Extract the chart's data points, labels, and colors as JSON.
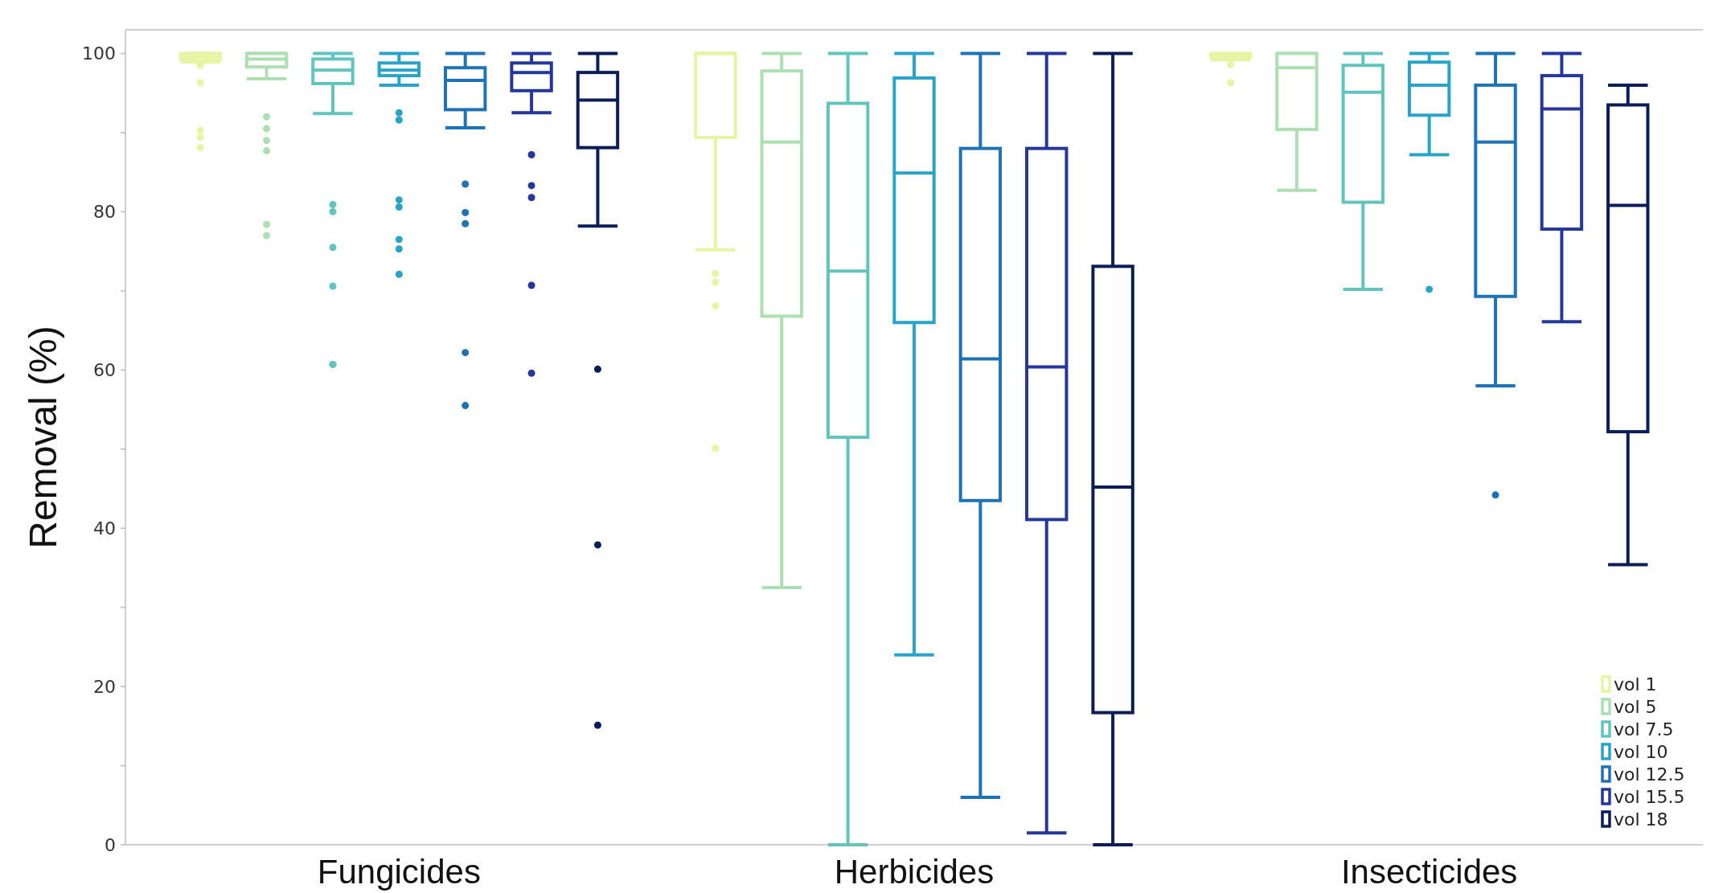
{
  "chart_data": {
    "type": "box",
    "ylabel": "Removal (%)",
    "categories": [
      "Fungicides",
      "Herbicides",
      "Insecticides"
    ],
    "ylim": [
      0,
      103
    ],
    "yticks": [
      0,
      {
        "value": 10,
        "label": null
      },
      20,
      {
        "value": 30,
        "label": null
      },
      40,
      {
        "value": 50,
        "label": null
      },
      60,
      {
        "value": 70,
        "label": null
      },
      80,
      {
        "value": 90,
        "label": null
      },
      100
    ],
    "legend": "bottom right",
    "series": [
      {
        "name": "vol 1",
        "color": "#e6f4a3",
        "boxes": [
          {
            "low": 98.9,
            "q1": 99.2,
            "median": 99.6,
            "q3": 100,
            "high": 100,
            "outliers": [
              98.5,
              96.3,
              90.3,
              89.4,
              88.1
            ]
          },
          {
            "low": 75.2,
            "q1": 89.4,
            "median": 100,
            "q3": 100,
            "high": 100,
            "outliers": [
              72.2,
              71.1,
              68.1,
              50.1
            ]
          },
          {
            "low": 99.2,
            "q1": 99.5,
            "median": 99.8,
            "q3": 100,
            "high": 100,
            "outliers": [
              98.6,
              96.3
            ]
          }
        ]
      },
      {
        "name": "vol 5",
        "color": "#ace0b2",
        "boxes": [
          {
            "low": 96.8,
            "q1": 98.3,
            "median": 99.3,
            "q3": 100,
            "high": 100,
            "outliers": [
              92.0,
              90.5,
              89.0,
              87.7,
              78.4,
              77.0
            ]
          },
          {
            "low": 32.5,
            "q1": 66.8,
            "median": 88.8,
            "q3": 97.8,
            "high": 100
          },
          {
            "low": 82.7,
            "q1": 90.4,
            "median": 98.2,
            "q3": 100,
            "high": 100
          }
        ]
      },
      {
        "name": "vol 7.5",
        "color": "#63c3bd",
        "boxes": [
          {
            "low": 92.4,
            "q1": 96.2,
            "median": 97.9,
            "q3": 99.3,
            "high": 100,
            "outliers": [
              80.9,
              80.0,
              75.5,
              70.6,
              60.7,
              60.7
            ]
          },
          {
            "low": 0,
            "q1": 51.5,
            "median": 72.5,
            "q3": 93.7,
            "high": 100
          },
          {
            "low": 70.2,
            "q1": 81.2,
            "median": 95.1,
            "q3": 98.5,
            "high": 100
          }
        ]
      },
      {
        "name": "vol 10",
        "color": "#2aa3c8",
        "boxes": [
          {
            "low": 96.0,
            "q1": 97.2,
            "median": 97.9,
            "q3": 98.8,
            "high": 100,
            "outliers": [
              92.5,
              91.6,
              81.5,
              80.6,
              76.5,
              75.3,
              72.1
            ]
          },
          {
            "low": 24.0,
            "q1": 66.0,
            "median": 84.9,
            "q3": 96.9,
            "high": 100
          },
          {
            "low": 87.2,
            "q1": 92.2,
            "median": 96.0,
            "q3": 98.9,
            "high": 100,
            "outliers": [
              70.2
            ]
          }
        ]
      },
      {
        "name": "vol 12.5",
        "color": "#1f72b3",
        "boxes": [
          {
            "low": 90.6,
            "q1": 92.9,
            "median": 96.6,
            "q3": 98.2,
            "high": 100,
            "outliers": [
              83.5,
              79.9,
              78.5,
              62.2,
              55.5
            ]
          },
          {
            "low": 6.0,
            "q1": 43.5,
            "median": 61.4,
            "q3": 88.0,
            "high": 100
          },
          {
            "low": 58.0,
            "q1": 69.3,
            "median": 88.8,
            "q3": 96.0,
            "high": 100,
            "outliers": [
              44.2
            ]
          }
        ]
      },
      {
        "name": "vol 15.5",
        "color": "#25379a",
        "boxes": [
          {
            "low": 92.5,
            "q1": 95.3,
            "median": 97.6,
            "q3": 98.8,
            "high": 100,
            "outliers": [
              87.2,
              83.3,
              81.8,
              70.7,
              59.6
            ]
          },
          {
            "low": 1.5,
            "q1": 41.1,
            "median": 60.4,
            "q3": 88.0,
            "high": 100
          },
          {
            "low": 66.1,
            "q1": 77.8,
            "median": 93.0,
            "q3": 97.2,
            "high": 100
          }
        ]
      },
      {
        "name": "vol 18",
        "color": "#0b1d57",
        "boxes": [
          {
            "low": 78.2,
            "q1": 88.1,
            "median": 94.1,
            "q3": 97.6,
            "high": 100,
            "outliers": [
              60.1,
              37.9,
              15.1
            ]
          },
          {
            "low": 0,
            "q1": 16.7,
            "median": 45.2,
            "q3": 73.1,
            "high": 100
          },
          {
            "low": 35.4,
            "q1": 52.2,
            "median": 80.8,
            "q3": 93.5,
            "high": 96.0
          }
        ]
      }
    ]
  }
}
